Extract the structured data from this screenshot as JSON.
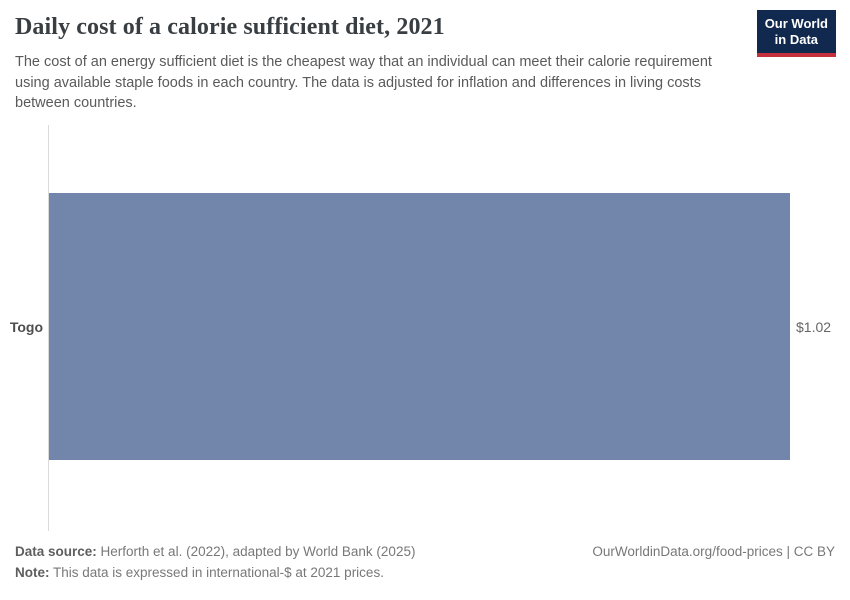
{
  "header": {
    "title": "Daily cost of a calorie sufficient diet, 2021",
    "subtitle": "The cost of an energy sufficient diet is the cheapest way that an individual can meet their calorie requirement using available staple foods in each country. The data is adjusted for inflation and differences in living costs between countries.",
    "logo": {
      "line1": "Our World",
      "line2": "in Data"
    }
  },
  "chart_data": {
    "type": "bar",
    "orientation": "horizontal",
    "title": "Daily cost of a calorie sufficient diet, 2021",
    "categories": [
      "Togo"
    ],
    "values": [
      1.02
    ],
    "value_labels": [
      "$1.02"
    ],
    "unit": "international-$",
    "xlabel": "",
    "ylabel": "",
    "xlim": [
      0,
      1.02
    ],
    "grid": false,
    "legend": false,
    "bar_color": "#7286ac"
  },
  "bar": {
    "entity": "Togo",
    "value_label": "$1.02"
  },
  "footer": {
    "data_source_label": "Data source:",
    "data_source_text": " Herforth et al. (2022), adapted by World Bank (2025)",
    "note_label": "Note:",
    "note_text": " This data is expressed in international-$ at 2021 prices.",
    "link": "OurWorldinData.org/food-prices | CC BY"
  },
  "colors": {
    "bar": "#7286ac",
    "logo_bg": "#12294f",
    "logo_accent": "#c5303c",
    "axis": "#dadada"
  }
}
